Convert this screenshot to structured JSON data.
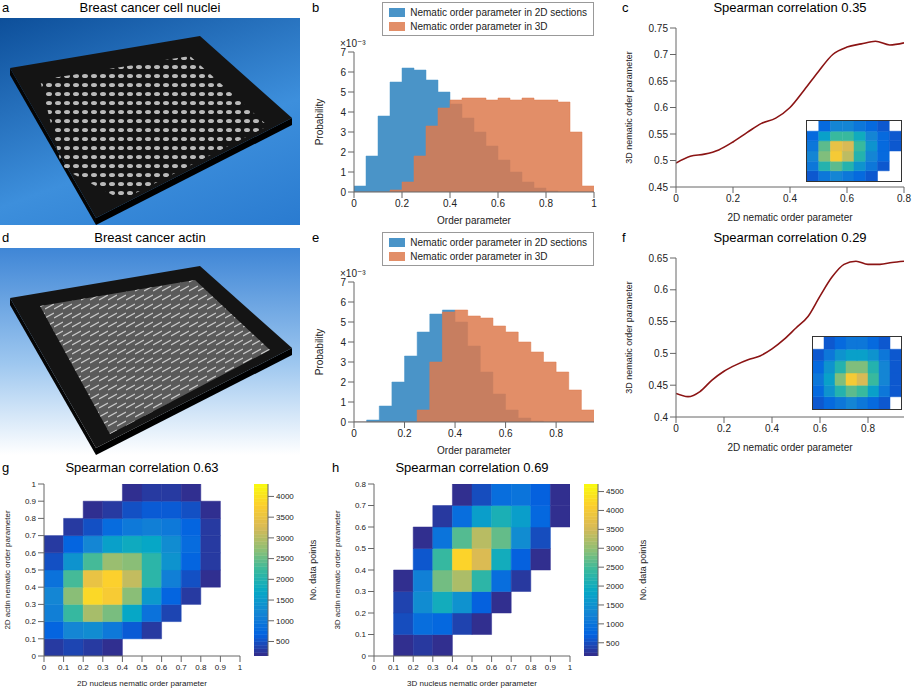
{
  "chart_data": [
    {
      "panel": "a",
      "type": "image",
      "title": "Breast cancer cell nuclei"
    },
    {
      "panel": "b",
      "type": "histogram",
      "x_label": "Order parameter",
      "y_label": "Probability",
      "y_exponent_label": "×10⁻³",
      "bins": [
        0,
        0.05,
        0.1,
        0.15,
        0.2,
        0.25,
        0.3,
        0.35,
        0.4,
        0.45,
        0.5,
        0.55,
        0.6,
        0.65,
        0.7,
        0.75,
        0.8,
        0.85,
        0.9,
        0.95,
        1
      ],
      "series": [
        {
          "name": "Nematic order parameter in 2D sections",
          "color": "#4a94c8",
          "values": [
            0.0003,
            0.0018,
            0.0038,
            0.0055,
            0.0062,
            0.0061,
            0.0056,
            0.005,
            0.0044,
            0.0037,
            0.003,
            0.0023,
            0.0016,
            0.001,
            0.0005,
            0.0002,
            5e-05,
            0,
            0,
            0
          ]
        },
        {
          "name": "Nematic order parameter in 3D",
          "color": "#dd7a4e",
          "values": [
            0,
            0,
            0,
            0.0001,
            0.0005,
            0.0018,
            0.0033,
            0.0042,
            0.0046,
            0.0047,
            0.0047,
            0.0046,
            0.0047,
            0.0046,
            0.0047,
            0.0046,
            0.0046,
            0.0045,
            0.003,
            0.0003
          ]
        }
      ],
      "xlim": [
        0,
        1
      ],
      "xticks": [
        0,
        0.2,
        0.4,
        0.6,
        0.8,
        1
      ],
      "ylim": [
        0,
        0.007
      ],
      "yticks": [
        0,
        {
          "value": 0.001,
          "label": "1"
        },
        {
          "value": 0.002,
          "label": "2"
        },
        {
          "value": 0.003,
          "label": "3"
        },
        {
          "value": 0.004,
          "label": "4"
        },
        {
          "value": 0.005,
          "label": "5"
        },
        {
          "value": 0.006,
          "label": "6"
        },
        {
          "value": 0.007,
          "label": "7"
        }
      ],
      "legend": "top"
    },
    {
      "panel": "c",
      "type": "line",
      "title": "Spearman correlation 0.35",
      "x_label": "2D nematic order parameter",
      "y_label": "3D nematic order parameter",
      "color": "#8b1414",
      "x": [
        0,
        0.05,
        0.1,
        0.15,
        0.2,
        0.25,
        0.3,
        0.35,
        0.4,
        0.45,
        0.5,
        0.55,
        0.6,
        0.65,
        0.7,
        0.75,
        0.8
      ],
      "values": [
        0.495,
        0.508,
        0.512,
        0.52,
        0.535,
        0.553,
        0.57,
        0.58,
        0.6,
        0.633,
        0.668,
        0.7,
        0.714,
        0.72,
        0.725,
        0.718,
        0.722
      ],
      "xlim": [
        0,
        0.8
      ],
      "xticks": [
        0,
        0.2,
        0.4,
        0.6,
        0.8
      ],
      "ylim": [
        0.45,
        0.75
      ],
      "yticks": [
        0.45,
        0.5,
        0.55,
        0.6,
        0.65,
        0.7,
        0.75
      ],
      "inset": {
        "type": "heatmap",
        "xlim": [
          0,
          1
        ],
        "ylim": [
          0,
          1
        ],
        "tick_labels": false,
        "zlim": [
          0,
          1
        ],
        "x_edges": [
          0,
          0.125,
          0.25,
          0.375,
          0.5,
          0.625,
          0.75,
          0.875,
          1
        ],
        "y_edges": [
          0,
          0.17,
          0.33,
          0.5,
          0.67,
          0.83,
          1
        ],
        "cells": [
          [
            0.1,
            0.2,
            0.25,
            0.2,
            0.15,
            0.1,
            null,
            null
          ],
          [
            0.2,
            0.45,
            0.55,
            0.45,
            0.3,
            0.2,
            0.1,
            null
          ],
          [
            0.25,
            0.6,
            0.85,
            0.7,
            0.45,
            0.25,
            0.15,
            null
          ],
          [
            0.2,
            0.55,
            0.8,
            0.75,
            0.5,
            0.3,
            0.15,
            0.1
          ],
          [
            0.15,
            0.35,
            0.5,
            0.5,
            0.4,
            0.25,
            0.15,
            0.1
          ],
          [
            null,
            0.15,
            0.25,
            0.25,
            0.2,
            0.15,
            0.1,
            null
          ]
        ]
      }
    },
    {
      "panel": "d",
      "type": "image",
      "title": "Breast cancer actin"
    },
    {
      "panel": "e",
      "type": "histogram",
      "x_label": "Order parameter",
      "y_label": "Probability",
      "y_exponent_label": "×10⁻³",
      "bins": [
        0,
        0.05,
        0.1,
        0.15,
        0.2,
        0.25,
        0.3,
        0.35,
        0.4,
        0.45,
        0.5,
        0.55,
        0.6,
        0.65,
        0.7,
        0.75,
        0.8,
        0.85,
        0.9,
        0.95
      ],
      "series": [
        {
          "name": "Nematic order parameter in 2D sections",
          "color": "#4a94c8",
          "values": [
            0,
            0.0001,
            0.0008,
            0.002,
            0.0033,
            0.0045,
            0.0054,
            0.0056,
            0.005,
            0.0038,
            0.0025,
            0.0014,
            0.0006,
            0.0002,
            5e-05,
            0,
            0,
            0,
            0
          ]
        },
        {
          "name": "Nematic order parameter in 3D",
          "color": "#dd7a4e",
          "values": [
            0,
            0,
            0,
            0,
            0,
            0.0006,
            0.003,
            0.0055,
            0.0056,
            0.0053,
            0.0052,
            0.0048,
            0.0045,
            0.004,
            0.0035,
            0.003,
            0.0025,
            0.0016,
            0.0006
          ]
        }
      ],
      "xlim": [
        0,
        0.95
      ],
      "xticks": [
        0,
        0.2,
        0.4,
        0.6,
        0.8
      ],
      "ylim": [
        0,
        0.007
      ],
      "yticks": [
        0,
        {
          "value": 0.001,
          "label": "1"
        },
        {
          "value": 0.002,
          "label": "2"
        },
        {
          "value": 0.003,
          "label": "3"
        },
        {
          "value": 0.004,
          "label": "4"
        },
        {
          "value": 0.005,
          "label": "5"
        },
        {
          "value": 0.006,
          "label": "6"
        },
        {
          "value": 0.007,
          "label": "7"
        }
      ],
      "legend": "top"
    },
    {
      "panel": "f",
      "type": "line",
      "title": "Spearman correlation 0.29",
      "x_label": "2D nematic order parameter",
      "y_label": "3D nematic order parameter",
      "color": "#8b1414",
      "x": [
        0,
        0.05,
        0.1,
        0.15,
        0.2,
        0.25,
        0.3,
        0.35,
        0.4,
        0.45,
        0.5,
        0.55,
        0.6,
        0.65,
        0.7,
        0.75,
        0.8,
        0.85,
        0.9,
        0.95
      ],
      "values": [
        0.437,
        0.432,
        0.44,
        0.458,
        0.472,
        0.482,
        0.49,
        0.496,
        0.507,
        0.522,
        0.54,
        0.558,
        0.59,
        0.62,
        0.64,
        0.645,
        0.64,
        0.64,
        0.643,
        0.645
      ],
      "xlim": [
        0,
        0.95
      ],
      "xticks": [
        0,
        0.2,
        0.4,
        0.6,
        0.8
      ],
      "ylim": [
        0.4,
        0.65
      ],
      "yticks": [
        0.4,
        0.45,
        0.5,
        0.55,
        0.6,
        0.65
      ],
      "inset": {
        "type": "heatmap",
        "xlim": [
          0,
          1
        ],
        "ylim": [
          0,
          1
        ],
        "tick_labels": false,
        "zlim": [
          0,
          1
        ],
        "x_edges": [
          0,
          0.125,
          0.25,
          0.375,
          0.5,
          0.625,
          0.75,
          0.875,
          1
        ],
        "y_edges": [
          0,
          0.17,
          0.33,
          0.5,
          0.67,
          0.83,
          1
        ],
        "cells": [
          [
            0.1,
            0.15,
            0.2,
            0.25,
            0.2,
            0.15,
            0.1,
            null
          ],
          [
            0.15,
            0.3,
            0.45,
            0.55,
            0.5,
            0.35,
            0.2,
            0.1
          ],
          [
            0.2,
            0.35,
            0.6,
            0.85,
            0.75,
            0.5,
            0.25,
            0.1
          ],
          [
            0.15,
            0.3,
            0.45,
            0.6,
            0.6,
            0.45,
            0.25,
            0.1
          ],
          [
            0.1,
            0.2,
            0.3,
            0.35,
            0.35,
            0.3,
            0.2,
            0.1
          ],
          [
            null,
            0.1,
            0.15,
            0.2,
            0.2,
            0.15,
            0.1,
            null
          ]
        ]
      }
    },
    {
      "panel": "g",
      "type": "heatmap",
      "title": "Spearman correlation 0.63",
      "x_label": "2D nucleus nematic order parameter",
      "y_label": "2D actin nematic order parameter",
      "xlim": [
        0,
        1
      ],
      "xticks": [
        0,
        0.1,
        0.2,
        0.3,
        0.4,
        0.5,
        0.6,
        0.7,
        0.8,
        0.9,
        1
      ],
      "ylim": [
        0,
        1
      ],
      "yticks": [
        0,
        0.1,
        0.2,
        0.3,
        0.4,
        0.5,
        0.6,
        0.7,
        0.8,
        0.9,
        1
      ],
      "x_edges": [
        0,
        0.1,
        0.2,
        0.3,
        0.4,
        0.5,
        0.6,
        0.7,
        0.8,
        0.9,
        1
      ],
      "y_edges": [
        0,
        0.1,
        0.2,
        0.3,
        0.4,
        0.5,
        0.6,
        0.7,
        0.8,
        0.9,
        1
      ],
      "cells": [
        [
          300,
          400,
          300,
          200,
          null,
          null,
          null,
          null,
          null,
          null
        ],
        [
          700,
          1200,
          1300,
          1000,
          600,
          300,
          null,
          null,
          null,
          null
        ],
        [
          1100,
          2200,
          2900,
          2600,
          1700,
          900,
          400,
          null,
          null,
          null
        ],
        [
          1200,
          2700,
          3900,
          3700,
          2700,
          1500,
          700,
          300,
          null,
          null
        ],
        [
          900,
          2300,
          3500,
          3800,
          3100,
          2100,
          1100,
          500,
          200,
          null
        ],
        [
          500,
          1400,
          2300,
          2800,
          2700,
          2100,
          1400,
          700,
          300,
          null
        ],
        [
          300,
          700,
          1200,
          1600,
          1800,
          1700,
          1300,
          800,
          300,
          null
        ],
        [
          null,
          300,
          500,
          800,
          1000,
          1100,
          1000,
          700,
          300,
          null
        ],
        [
          null,
          null,
          200,
          300,
          500,
          600,
          600,
          500,
          200,
          null
        ],
        [
          null,
          null,
          null,
          null,
          200,
          300,
          300,
          200,
          null,
          null
        ]
      ],
      "colorbar": {
        "label": "No. data points",
        "range": [
          150,
          4300
        ],
        "ticks": [
          500,
          1000,
          1500,
          2000,
          2500,
          3000,
          3500,
          4000
        ]
      }
    },
    {
      "panel": "h",
      "type": "heatmap",
      "title": "Spearman correlation 0.69",
      "x_label": "3D nucleus nematic order parameter",
      "y_label": "3D actin nematic order parameter",
      "xlim": [
        0,
        1
      ],
      "xticks": [
        0,
        0.1,
        0.2,
        0.3,
        0.4,
        0.5,
        0.6,
        0.7,
        0.8,
        0.9,
        1
      ],
      "ylim": [
        0,
        0.8
      ],
      "yticks": [
        0,
        0.1,
        0.2,
        0.3,
        0.4,
        0.5,
        0.6,
        0.7,
        0.8
      ],
      "x_edges": [
        0,
        0.1,
        0.2,
        0.3,
        0.4,
        0.5,
        0.6,
        0.7,
        0.8,
        0.9,
        1
      ],
      "y_edges": [
        0,
        0.1,
        0.2,
        0.3,
        0.4,
        0.5,
        0.6,
        0.7,
        0.8
      ],
      "cells": [
        [
          null,
          200,
          300,
          200,
          null,
          null,
          null,
          null,
          null,
          null
        ],
        [
          null,
          500,
          900,
          800,
          400,
          200,
          null,
          null,
          null,
          null
        ],
        [
          null,
          400,
          1400,
          2000,
          1500,
          700,
          200,
          null,
          null,
          null
        ],
        [
          null,
          200,
          1200,
          2800,
          3200,
          2300,
          900,
          300,
          null,
          null
        ],
        [
          null,
          null,
          600,
          2400,
          4200,
          3600,
          2000,
          700,
          200,
          null
        ],
        [
          null,
          null,
          200,
          1000,
          2600,
          3300,
          2700,
          1400,
          500,
          null
        ],
        [
          null,
          null,
          null,
          300,
          900,
          1700,
          2100,
          1700,
          800,
          200
        ],
        [
          null,
          null,
          null,
          null,
          200,
          500,
          900,
          1000,
          700,
          200
        ]
      ],
      "colorbar": {
        "label": "No. data points",
        "range": [
          150,
          4700
        ],
        "ticks": [
          500,
          1000,
          1500,
          2000,
          2500,
          3000,
          3500,
          4000,
          4500
        ]
      }
    }
  ]
}
